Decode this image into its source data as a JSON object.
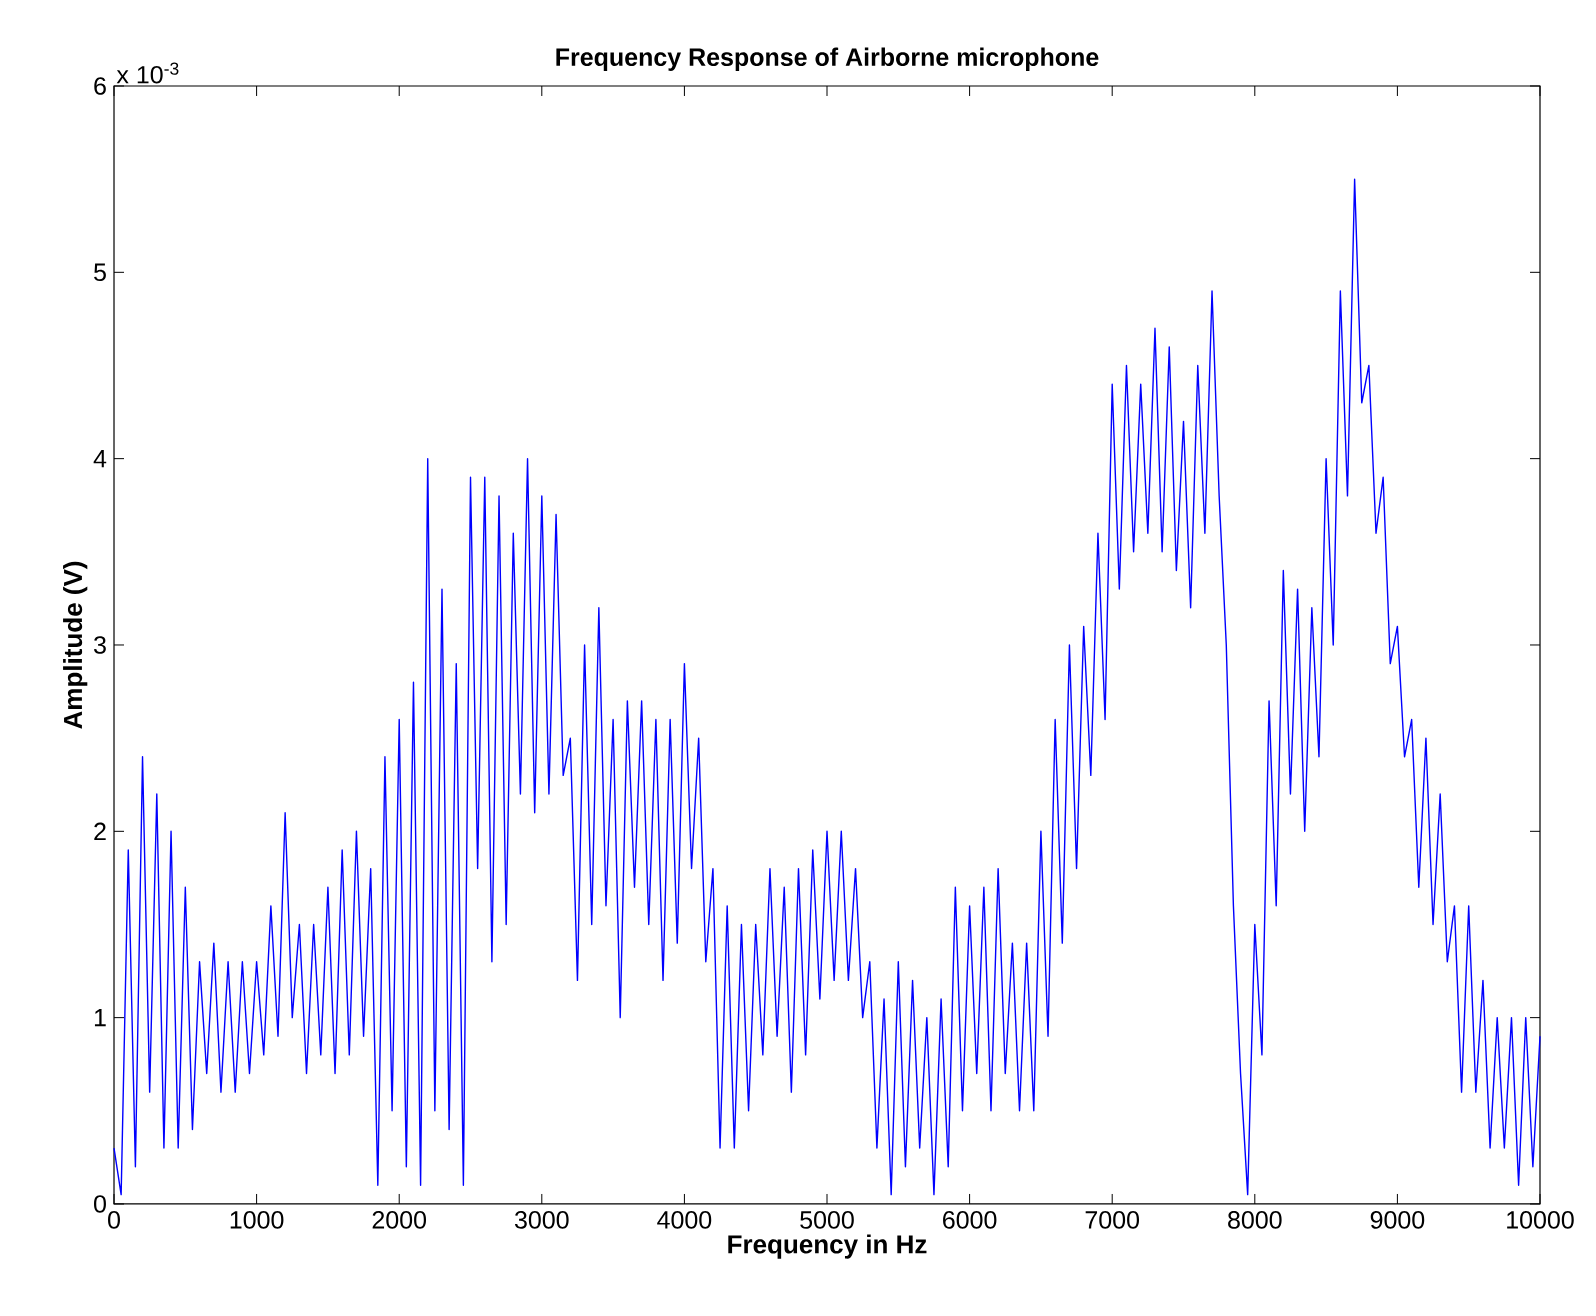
{
  "chart_data": {
    "type": "line",
    "title": "Frequency Response of Airborne microphone",
    "xlabel": "Frequency in Hz",
    "ylabel": "Amplitude (V)",
    "annotations": [
      "x 10$^{-3}$"
    ],
    "x": [
      0,
      50,
      100,
      150,
      200,
      250,
      300,
      350,
      400,
      450,
      500,
      550,
      600,
      650,
      700,
      750,
      800,
      850,
      900,
      950,
      1000,
      1050,
      1100,
      1150,
      1200,
      1250,
      1300,
      1350,
      1400,
      1450,
      1500,
      1550,
      1600,
      1650,
      1700,
      1750,
      1800,
      1850,
      1900,
      1950,
      2000,
      2050,
      2100,
      2150,
      2200,
      2250,
      2300,
      2350,
      2400,
      2450,
      2500,
      2550,
      2600,
      2650,
      2700,
      2750,
      2800,
      2850,
      2900,
      2950,
      3000,
      3050,
      3100,
      3150,
      3200,
      3250,
      3300,
      3350,
      3400,
      3450,
      3500,
      3550,
      3600,
      3650,
      3700,
      3750,
      3800,
      3850,
      3900,
      3950,
      4000,
      4050,
      4100,
      4150,
      4200,
      4250,
      4300,
      4350,
      4400,
      4450,
      4500,
      4550,
      4600,
      4650,
      4700,
      4750,
      4800,
      4850,
      4900,
      4950,
      5000,
      5050,
      5100,
      5150,
      5200,
      5250,
      5300,
      5350,
      5400,
      5450,
      5500,
      5550,
      5600,
      5650,
      5700,
      5750,
      5800,
      5850,
      5900,
      5950,
      6000,
      6050,
      6100,
      6150,
      6200,
      6250,
      6300,
      6350,
      6400,
      6450,
      6500,
      6550,
      6600,
      6650,
      6700,
      6750,
      6800,
      6850,
      6900,
      6950,
      7000,
      7050,
      7100,
      7150,
      7200,
      7250,
      7300,
      7350,
      7400,
      7450,
      7500,
      7550,
      7600,
      7650,
      7700,
      7750,
      7800,
      7850,
      7900,
      7950,
      8000,
      8050,
      8100,
      8150,
      8200,
      8250,
      8300,
      8350,
      8400,
      8450,
      8500,
      8550,
      8600,
      8650,
      8700,
      8750,
      8800,
      8850,
      8900,
      8950,
      9000,
      9050,
      9100,
      9150,
      9200,
      9250,
      9300,
      9350,
      9400,
      9450,
      9500,
      9550,
      9600,
      9650,
      9700,
      9750,
      9800,
      9850,
      9900,
      9950,
      10000
    ],
    "series": [
      {
        "color": "#0000ff",
        "values": [
          0.3,
          0.05,
          1.9,
          0.2,
          2.4,
          0.6,
          2.2,
          0.3,
          2.0,
          0.3,
          1.7,
          0.4,
          1.3,
          0.7,
          1.4,
          0.6,
          1.3,
          0.6,
          1.3,
          0.7,
          1.3,
          0.8,
          1.6,
          0.9,
          2.1,
          1.0,
          1.5,
          0.7,
          1.5,
          0.8,
          1.7,
          0.7,
          1.9,
          0.8,
          2.0,
          0.9,
          1.8,
          0.1,
          2.4,
          0.5,
          2.6,
          0.2,
          2.8,
          0.1,
          4.0,
          0.5,
          3.3,
          0.4,
          2.9,
          0.1,
          3.9,
          1.8,
          3.9,
          1.3,
          3.8,
          1.5,
          3.6,
          2.2,
          4.0,
          2.1,
          3.8,
          2.2,
          3.7,
          2.3,
          2.5,
          1.2,
          3.0,
          1.5,
          3.2,
          1.6,
          2.6,
          1.0,
          2.7,
          1.7,
          2.7,
          1.5,
          2.6,
          1.2,
          2.6,
          1.4,
          2.9,
          1.8,
          2.5,
          1.3,
          1.8,
          0.3,
          1.6,
          0.3,
          1.5,
          0.5,
          1.5,
          0.8,
          1.8,
          0.9,
          1.7,
          0.6,
          1.8,
          0.8,
          1.9,
          1.1,
          2.0,
          1.2,
          2.0,
          1.2,
          1.8,
          1.0,
          1.3,
          0.3,
          1.1,
          0.05,
          1.3,
          0.2,
          1.2,
          0.3,
          1.0,
          0.05,
          1.1,
          0.2,
          1.7,
          0.5,
          1.6,
          0.7,
          1.7,
          0.5,
          1.8,
          0.7,
          1.4,
          0.5,
          1.4,
          0.5,
          2.0,
          0.9,
          2.6,
          1.4,
          3.0,
          1.8,
          3.1,
          2.3,
          3.6,
          2.6,
          4.4,
          3.3,
          4.5,
          3.5,
          4.4,
          3.6,
          4.7,
          3.5,
          4.6,
          3.4,
          4.2,
          3.2,
          4.5,
          3.6,
          4.9,
          3.8,
          3.0,
          1.6,
          0.7,
          0.05,
          1.5,
          0.8,
          2.7,
          1.6,
          3.4,
          2.2,
          3.3,
          2.0,
          3.2,
          2.4,
          4.0,
          3.0,
          4.9,
          3.8,
          5.5,
          4.3,
          4.5,
          3.6,
          3.9,
          2.9,
          3.1,
          2.4,
          2.6,
          1.7,
          2.5,
          1.5,
          2.2,
          1.3,
          1.6,
          0.6,
          1.6,
          0.6,
          1.2,
          0.3,
          1.0,
          0.3,
          1.0,
          0.1,
          1.0,
          0.2,
          0.9
        ]
      }
    ],
    "xlim": [
      0,
      10000
    ],
    "ylim": [
      0,
      6
    ],
    "xticks": [
      0,
      1000,
      2000,
      3000,
      4000,
      5000,
      6000,
      7000,
      8000,
      9000,
      10000
    ],
    "yticks": [
      0,
      1,
      2,
      3,
      4,
      5,
      6
    ],
    "grid": false,
    "marker": "none",
    "line_style": "solid"
  }
}
